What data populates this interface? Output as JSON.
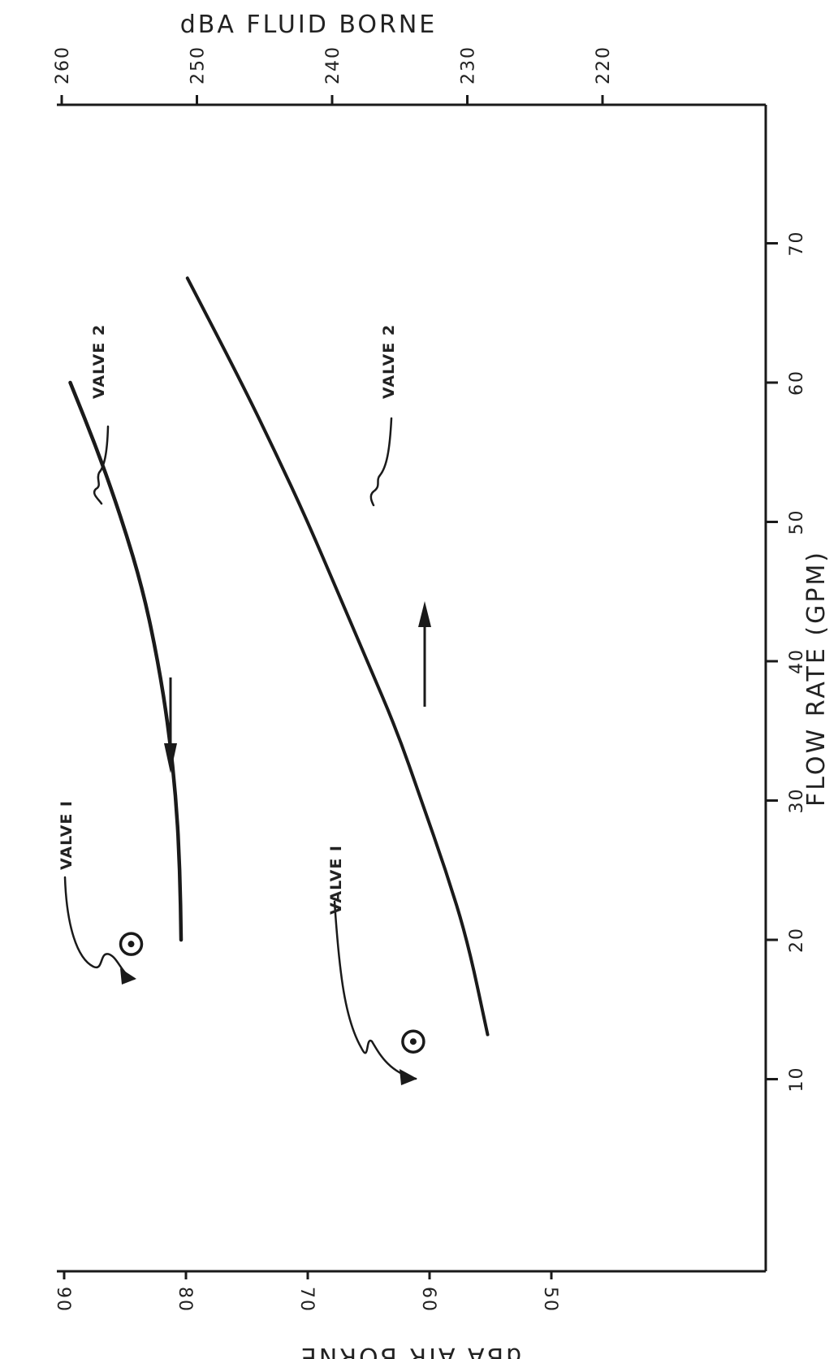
{
  "chart_data": {
    "type": "line",
    "orientation": "rotated-90-ccw",
    "x": {
      "label": "FLOW RATE (GPM)",
      "ticks": [
        "10",
        "20",
        "30",
        "40",
        "50",
        "60",
        "70"
      ],
      "range": [
        0,
        80
      ]
    },
    "y_left": {
      "label": "dBA AIR BORNE",
      "ticks": [
        "50",
        "60",
        "70",
        "80",
        "90"
      ],
      "range": [
        45,
        90
      ]
    },
    "y_right": {
      "label": "dBA FLUID BORNE",
      "ticks": [
        "220",
        "230",
        "240",
        "250",
        "260"
      ],
      "range": [
        216,
        260
      ]
    },
    "series": [
      {
        "axis": "air",
        "color": "#1a1a1a",
        "points": [
          [
            20,
            80.4
          ],
          [
            25,
            80.5
          ],
          [
            30,
            80.8
          ],
          [
            35,
            81.4
          ],
          [
            40,
            82.3
          ],
          [
            45,
            83.5
          ],
          [
            50,
            85.2
          ],
          [
            55,
            87.2
          ],
          [
            60,
            89.5
          ]
        ]
      },
      {
        "axis": "fluid",
        "color": "#1a1a1a",
        "points": [
          [
            13.2,
            228.5
          ],
          [
            20,
            230.0
          ],
          [
            25,
            231.6
          ],
          [
            30,
            233.4
          ],
          [
            35,
            235.2
          ],
          [
            40,
            237.4
          ],
          [
            45,
            239.6
          ],
          [
            50,
            241.8
          ],
          [
            55,
            244.2
          ],
          [
            60,
            246.7
          ],
          [
            67.5,
            250.7
          ]
        ]
      }
    ],
    "points": [
      {
        "axis": "air",
        "x": 19.7,
        "y": 84.5
      },
      {
        "axis": "fluid",
        "x": 12.7,
        "y": 234.0
      }
    ],
    "annotations": [
      {
        "text": "VALVE I",
        "target_axis": "air"
      },
      {
        "text": "VALVE 2",
        "target_axis": "air"
      },
      {
        "text": "VALVE I",
        "target_axis": "fluid"
      },
      {
        "text": "VALVE 2",
        "target_axis": "fluid"
      }
    ],
    "axis_indicators": [
      {
        "axis": "air",
        "direction": "left"
      },
      {
        "axis": "fluid",
        "direction": "right"
      }
    ],
    "grid": false
  }
}
